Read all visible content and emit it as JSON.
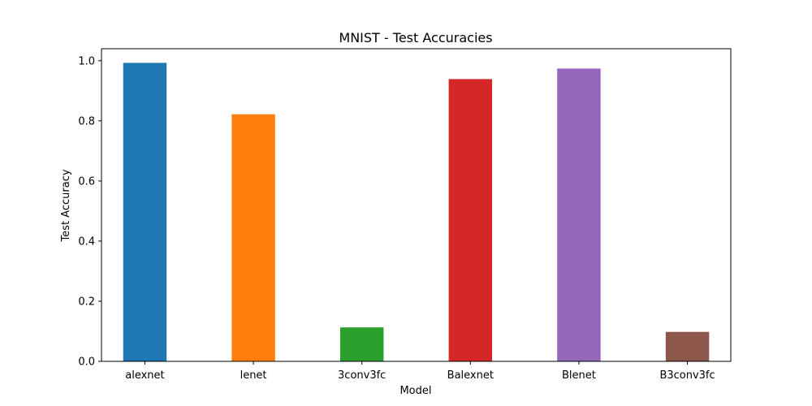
{
  "chart_data": {
    "type": "bar",
    "title": "MNIST - Test Accuracies",
    "xlabel": "Model",
    "ylabel": "Test Accuracy",
    "categories": [
      "alexnet",
      "lenet",
      "3conv3fc",
      "Balexnet",
      "Blenet",
      "B3conv3fc"
    ],
    "values": [
      0.993,
      0.822,
      0.113,
      0.939,
      0.974,
      0.098
    ],
    "colors": [
      "#1f77b4",
      "#ff7f0e",
      "#2ca02c",
      "#d62728",
      "#9467bd",
      "#8c564b"
    ],
    "ylim": [
      0,
      1.04
    ],
    "yticks": [
      0.0,
      0.2,
      0.4,
      0.6,
      0.8,
      1.0
    ],
    "ytick_labels": [
      "0.0",
      "0.2",
      "0.4",
      "0.6",
      "0.8",
      "1.0"
    ],
    "grid": false,
    "legend": "none"
  }
}
